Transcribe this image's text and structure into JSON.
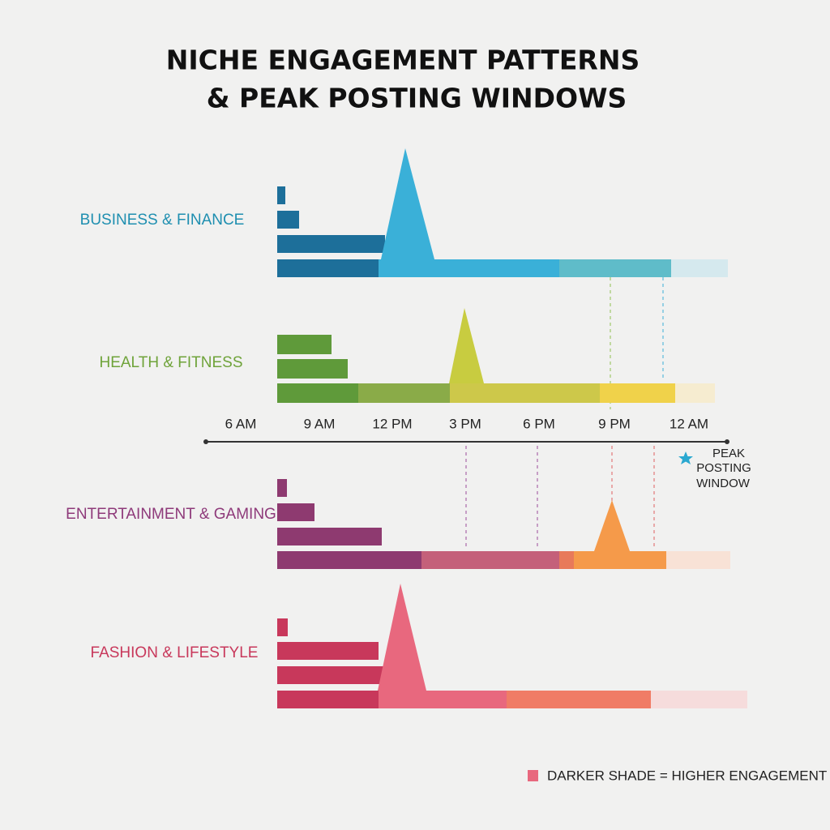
{
  "title": {
    "line1": "NICHE ENGAGEMENT PATTERNS",
    "line2": "& PEAK POSTING WINDOWS"
  },
  "niches": [
    {
      "label": "BUSINESS & FINANCE"
    },
    {
      "label": "HEALTH & FITNESS"
    },
    {
      "label": "ENTERTAINMENT & GAMING"
    },
    {
      "label": "FASHION & LIFESTYLE"
    }
  ],
  "time_axis": {
    "labels": [
      "6 AM",
      "9 AM",
      "12 PM",
      "3 PM",
      "6 PM",
      "9 PM",
      "12 AM"
    ]
  },
  "peak_legend": {
    "lines": [
      "PEAK",
      "POSTING",
      "WINDOW"
    ]
  },
  "footer_legend": {
    "text": "DARKER SHADE = HIGHER ENGAGEMENT"
  }
}
